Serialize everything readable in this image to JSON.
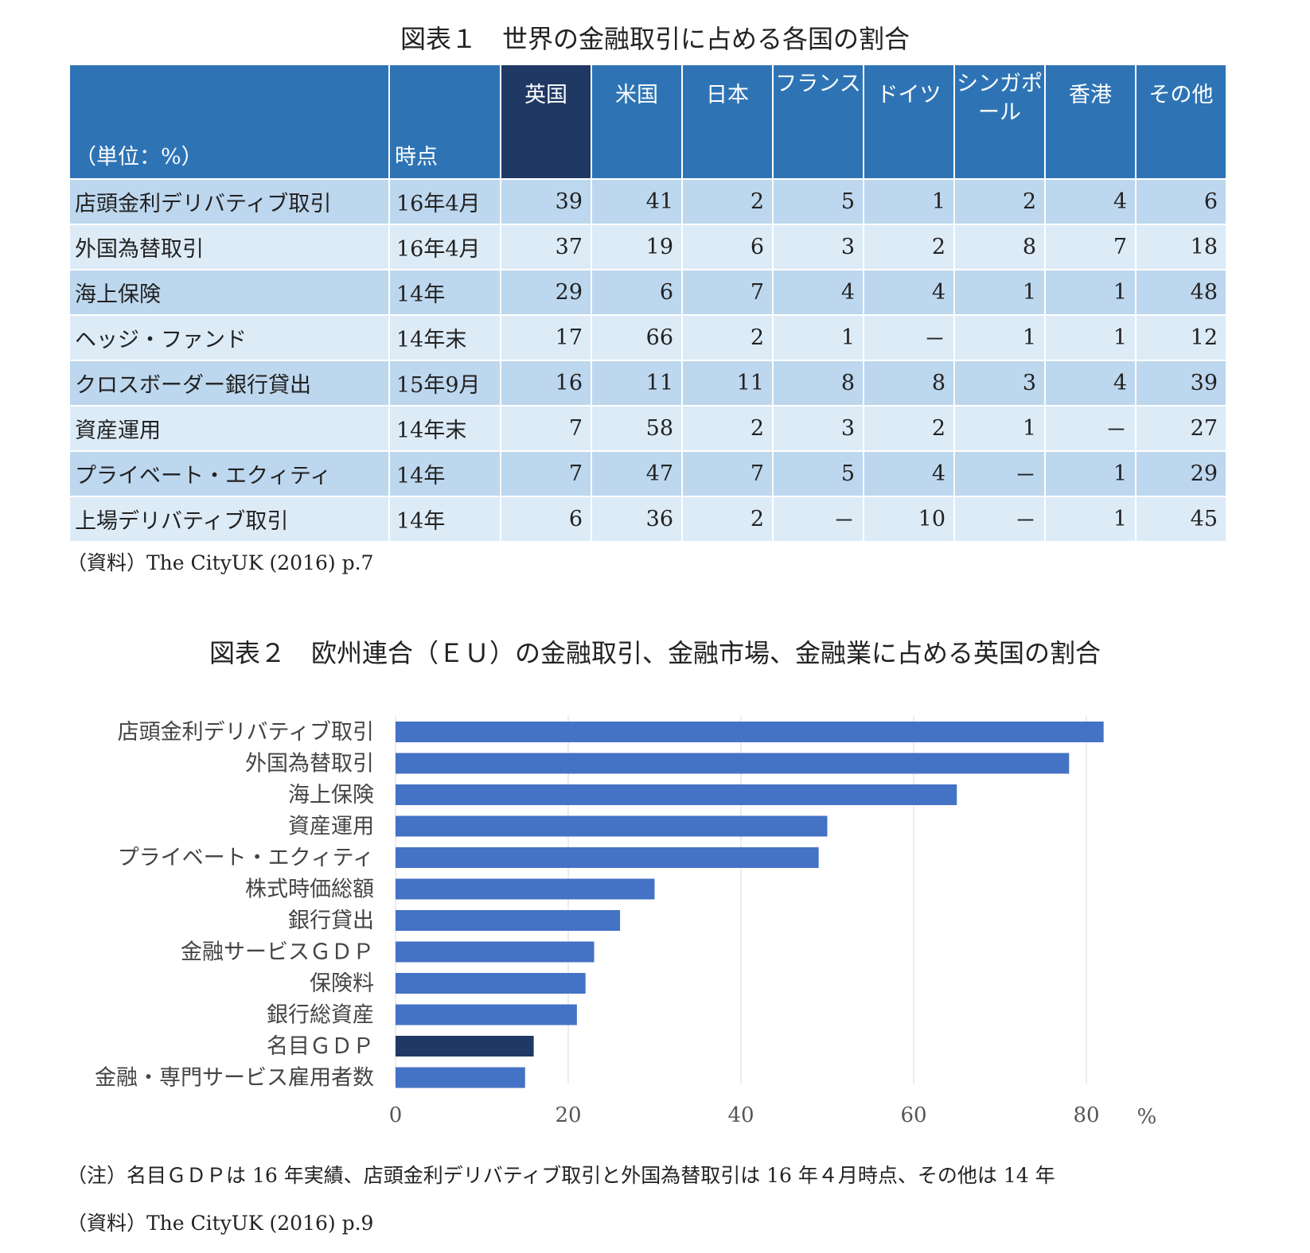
{
  "table1": {
    "title": "図表１　世界の金融取引に占める各国の割合",
    "unit_label": "（単位：%）",
    "period_header": "時点",
    "columns": [
      "英国",
      "米国",
      "日本",
      "フランス",
      "ドイツ",
      "シンガポール",
      "香港",
      "その他"
    ],
    "highlight_color": "#1f3864",
    "header_color": "#2e74b5",
    "rows": [
      {
        "name": "店頭金利デリバティブ取引",
        "period": "16年4月",
        "values": [
          "39",
          "41",
          "2",
          "5",
          "1",
          "2",
          "4",
          "6"
        ]
      },
      {
        "name": "外国為替取引",
        "period": "16年4月",
        "values": [
          "37",
          "19",
          "6",
          "3",
          "2",
          "8",
          "7",
          "18"
        ]
      },
      {
        "name": "海上保険",
        "period": "14年",
        "values": [
          "29",
          "6",
          "7",
          "4",
          "4",
          "1",
          "1",
          "48"
        ]
      },
      {
        "name": "ヘッジ・ファンド",
        "period": "14年末",
        "values": [
          "17",
          "66",
          "2",
          "1",
          "－",
          "1",
          "1",
          "12"
        ]
      },
      {
        "name": "クロスボーダー銀行貸出",
        "period": "15年9月",
        "values": [
          "16",
          "11",
          "11",
          "8",
          "8",
          "3",
          "4",
          "39"
        ]
      },
      {
        "name": "資産運用",
        "period": "14年末",
        "values": [
          "7",
          "58",
          "2",
          "3",
          "2",
          "1",
          "－",
          "27"
        ]
      },
      {
        "name": "プライベート・エクィティ",
        "period": "14年",
        "values": [
          "7",
          "47",
          "7",
          "5",
          "4",
          "－",
          "1",
          "29"
        ]
      },
      {
        "name": "上場デリバティブ取引",
        "period": "14年",
        "values": [
          "6",
          "36",
          "2",
          "－",
          "10",
          "－",
          "1",
          "45"
        ]
      }
    ],
    "source": "（資料）The CityUK (2016) p.7"
  },
  "figure2": {
    "title": "図表２　欧州連合（ＥＵ）の金融取引、金融市場、金融業に占める英国の割合",
    "note": "（注）名目ＧＤＰは 16 年実績、店頭金利デリバティブ取引と外国為替取引は 16 年４月時点、その他は 14 年",
    "source": "（資料）The CityUK (2016) p.9"
  },
  "chart_data": {
    "type": "bar",
    "orientation": "horizontal",
    "categories": [
      "店頭金利デリバティブ取引",
      "外国為替取引",
      "海上保険",
      "資産運用",
      "プライベート・エクィティ",
      "株式時価総額",
      "銀行貸出",
      "金融サービスＧＤＰ",
      "保険料",
      "銀行総資産",
      "名目ＧＤＰ",
      "金融・専門サービス雇用者数"
    ],
    "values": [
      82,
      78,
      65,
      50,
      49,
      30,
      26,
      23,
      22,
      21,
      16,
      15
    ],
    "bar_color": "#4472c4",
    "highlight_color": "#203864",
    "highlight_category": "名目ＧＤＰ",
    "xlim": [
      0,
      90
    ],
    "xticks": [
      0,
      20,
      40,
      60,
      80
    ],
    "unit": "%",
    "grid": true,
    "legend": "none"
  }
}
